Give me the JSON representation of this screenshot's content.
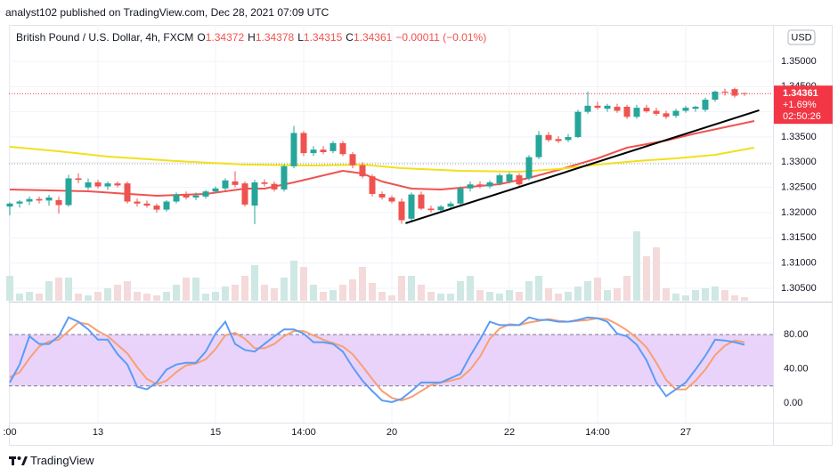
{
  "header": {
    "text": "analyst102 published on TradingView.com, Dec 28, 2021 07:09 UTC"
  },
  "footer": {
    "brand": "TradingView"
  },
  "chart_data": {
    "type": "candlestick",
    "title": "British Pound / U.S. Dollar, 4h, FXCM",
    "ohlc_labels": [
      "O",
      "H",
      "L",
      "C"
    ],
    "change": "−0.00011 (−0.01%)",
    "currency": "USD",
    "change_pct": "+1.69%",
    "countdown": "02:50:26",
    "up_color": "#26a69a",
    "down_color": "#ef5350",
    "volume_up_color": "#cfe8e4",
    "volume_down_color": "#f5dadb",
    "price_line_color": "#f23645",
    "reference_line": 1.3297,
    "grid": true,
    "ylim": [
      1.30253,
      1.35688
    ],
    "yticks": [
      {
        "value": 1.305,
        "label": "1.30500"
      },
      {
        "value": 1.31,
        "label": "1.31000"
      },
      {
        "value": 1.315,
        "label": "1.31500"
      },
      {
        "value": 1.32,
        "label": "1.32000"
      },
      {
        "value": 1.325,
        "label": "1.32500"
      },
      {
        "value": 1.33,
        "label": "1.33000"
      },
      {
        "value": 1.335,
        "label": "1.33500"
      },
      {
        "value": 1.34,
        "label": "1.34000"
      },
      {
        "value": 1.345,
        "label": "1.34500"
      },
      {
        "value": 1.35,
        "label": "1.35000"
      }
    ],
    "categories": [
      ":00",
      null,
      null,
      null,
      null,
      null,
      null,
      null,
      null,
      "13",
      null,
      null,
      null,
      null,
      null,
      null,
      null,
      null,
      null,
      null,
      null,
      "15",
      null,
      null,
      null,
      null,
      null,
      null,
      null,
      null,
      "14:00",
      null,
      null,
      null,
      null,
      null,
      null,
      null,
      null,
      "20",
      null,
      null,
      null,
      null,
      null,
      null,
      null,
      null,
      null,
      null,
      null,
      "22",
      null,
      null,
      null,
      null,
      null,
      null,
      null,
      null,
      "14:00",
      null,
      null,
      null,
      null,
      null,
      null,
      null,
      null,
      "27",
      null,
      null,
      null,
      null,
      null,
      null
    ],
    "open": [
      1.3212,
      1.3218,
      1.3222,
      1.3227,
      1.3224,
      1.3225,
      1.3215,
      1.3268,
      1.325,
      1.326,
      1.3252,
      1.3258,
      1.3258,
      1.3222,
      1.3218,
      1.3214,
      1.3206,
      1.3222,
      1.3236,
      1.323,
      1.3232,
      1.3242,
      1.3248,
      1.3262,
      1.3258,
      1.3214,
      1.326,
      1.3257,
      1.3246,
      1.3292,
      1.3358,
      1.3318,
      1.3325,
      1.3322,
      1.3338,
      1.3316,
      1.3294,
      1.3272,
      1.3237,
      1.323,
      1.3222,
      1.3188,
      1.3236,
      1.3208,
      1.3205,
      1.3212,
      1.3218,
      1.3248,
      1.3256,
      1.3252,
      1.3258,
      1.3262,
      1.3274,
      1.3268,
      1.331,
      1.3354,
      1.3346,
      1.3344,
      1.335,
      1.34,
      1.3412,
      1.3406,
      1.341,
      1.341,
      1.339,
      1.3408,
      1.3402,
      1.3397,
      1.3392,
      1.3402,
      1.3406,
      1.3404,
      1.3424,
      1.344,
      1.3445,
      1.34372
    ],
    "high": [
      1.322,
      1.3225,
      1.3232,
      1.3232,
      1.3235,
      1.3232,
      1.3275,
      1.3278,
      1.3268,
      1.3265,
      1.3262,
      1.3262,
      1.3262,
      1.3228,
      1.3224,
      1.3218,
      1.3225,
      1.324,
      1.3242,
      1.324,
      1.3245,
      1.3252,
      1.3268,
      1.3282,
      1.3262,
      1.3265,
      1.3266,
      1.3262,
      1.3295,
      1.3372,
      1.3362,
      1.3332,
      1.3332,
      1.3342,
      1.3342,
      1.332,
      1.33,
      1.3276,
      1.3242,
      1.3234,
      1.3228,
      1.324,
      1.3242,
      1.3214,
      1.3215,
      1.3222,
      1.3252,
      1.3262,
      1.3262,
      1.3264,
      1.3278,
      1.328,
      1.3278,
      1.3314,
      1.3362,
      1.336,
      1.3352,
      1.3356,
      1.3404,
      1.344,
      1.342,
      1.3416,
      1.3416,
      1.3414,
      1.3414,
      1.3414,
      1.3408,
      1.3402,
      1.3406,
      1.3412,
      1.3412,
      1.3428,
      1.3442,
      1.3446,
      1.3448,
      1.34378
    ],
    "low": [
      1.3195,
      1.321,
      1.3215,
      1.3218,
      1.3214,
      1.3198,
      1.3212,
      1.3258,
      1.3245,
      1.3248,
      1.3245,
      1.325,
      1.3218,
      1.3212,
      1.321,
      1.32,
      1.3202,
      1.3218,
      1.3226,
      1.3225,
      1.3228,
      1.3238,
      1.3244,
      1.325,
      1.3212,
      1.3177,
      1.3252,
      1.3242,
      1.3242,
      1.3288,
      1.3312,
      1.3312,
      1.3316,
      1.3318,
      1.3312,
      1.3288,
      1.3268,
      1.3232,
      1.3226,
      1.3218,
      1.3178,
      1.3184,
      1.3205,
      1.32,
      1.32,
      1.3208,
      1.3214,
      1.3242,
      1.3248,
      1.3248,
      1.3254,
      1.3258,
      1.3252,
      1.3264,
      1.3306,
      1.334,
      1.3338,
      1.334,
      1.3348,
      1.3396,
      1.3404,
      1.34,
      1.3398,
      1.3386,
      1.3386,
      1.3398,
      1.3392,
      1.3386,
      1.3388,
      1.3398,
      1.34,
      1.34,
      1.342,
      1.3432,
      1.3428,
      1.34315
    ],
    "close": [
      1.3218,
      1.3222,
      1.3227,
      1.3224,
      1.323,
      1.3215,
      1.3268,
      1.3265,
      1.326,
      1.3252,
      1.3258,
      1.3254,
      1.3222,
      1.3218,
      1.3214,
      1.3206,
      1.3222,
      1.3236,
      1.323,
      1.3234,
      1.3242,
      1.3248,
      1.3264,
      1.3255,
      1.3216,
      1.326,
      1.3257,
      1.3246,
      1.3292,
      1.3358,
      1.3318,
      1.3325,
      1.332,
      1.3338,
      1.3316,
      1.3294,
      1.3272,
      1.3237,
      1.323,
      1.3222,
      1.3185,
      1.3236,
      1.3208,
      1.3205,
      1.3212,
      1.3218,
      1.3248,
      1.3256,
      1.3252,
      1.326,
      1.3274,
      1.3276,
      1.3256,
      1.331,
      1.3354,
      1.3344,
      1.3342,
      1.335,
      1.34,
      1.3412,
      1.3408,
      1.3412,
      1.3402,
      1.339,
      1.3408,
      1.3401,
      1.3396,
      1.339,
      1.3402,
      1.3408,
      1.341,
      1.3424,
      1.344,
      1.3438,
      1.3432,
      1.34361
    ],
    "volume": [
      28,
      8,
      10,
      8,
      22,
      26,
      26,
      8,
      6,
      10,
      14,
      18,
      22,
      10,
      8,
      6,
      10,
      18,
      26,
      26,
      8,
      10,
      16,
      18,
      28,
      40,
      18,
      14,
      26,
      45,
      38,
      18,
      10,
      12,
      18,
      24,
      38,
      20,
      10,
      6,
      28,
      28,
      18,
      10,
      8,
      8,
      22,
      28,
      12,
      10,
      8,
      12,
      10,
      22,
      28,
      14,
      8,
      10,
      16,
      22,
      26,
      12,
      14,
      28,
      78,
      50,
      60,
      14,
      8,
      6,
      12,
      14,
      16,
      12,
      6,
      4
    ],
    "series": [
      {
        "color": "#f05350",
        "x": [
          0,
          8,
          15,
          20,
          24,
          26,
          29,
          34,
          36,
          38,
          41,
          44,
          47,
          50,
          53,
          56,
          60,
          63,
          67,
          70,
          73,
          76
        ],
        "values": [
          1.32459,
          1.32423,
          1.32335,
          1.3237,
          1.32476,
          1.32476,
          1.326,
          1.32829,
          1.32776,
          1.32617,
          1.32476,
          1.32459,
          1.32511,
          1.32564,
          1.32688,
          1.32847,
          1.33076,
          1.33288,
          1.33429,
          1.3357,
          1.33694,
          1.33818
        ]
      },
      {
        "color": "#f2e01c",
        "x": [
          0,
          5,
          10,
          17,
          24,
          31,
          36,
          40,
          46,
          52,
          56,
          60,
          64,
          68,
          72,
          76
        ],
        "values": [
          1.33306,
          1.33217,
          1.33111,
          1.33023,
          1.32953,
          1.32935,
          1.32953,
          1.32882,
          1.32829,
          1.32812,
          1.32864,
          1.32953,
          1.33023,
          1.33076,
          1.33147,
          1.33288
        ]
      }
    ],
    "trendline": {
      "color": "#000000",
      "x": [
        40.4,
        76.5
      ],
      "values": [
        1.3179,
        1.3403
      ]
    },
    "stochastic": {
      "ylim": [
        -22.9,
        117.4
      ],
      "yticks": [
        {
          "value": 0,
          "label": "0.00"
        },
        {
          "value": 40,
          "label": "40.00"
        },
        {
          "value": 80,
          "label": "80.00"
        }
      ],
      "band": [
        20,
        80
      ],
      "band_color": "#ead3fa",
      "k": {
        "color": "#5b9cf6",
        "values": [
          24,
          45,
          78,
          69,
          69,
          78,
          100,
          95,
          86,
          74,
          74,
          57,
          45,
          19,
          16,
          24,
          39,
          45,
          47,
          47,
          60,
          81,
          95,
          69,
          62,
          60,
          69,
          78,
          86,
          86,
          81,
          71,
          71,
          69,
          60,
          42,
          26,
          14,
          3,
          1,
          5,
          14,
          24,
          24,
          24,
          29,
          34,
          55,
          74,
          95,
          91,
          91,
          91,
          100,
          97,
          97,
          95,
          95,
          97,
          100,
          99,
          95,
          81,
          78,
          68,
          50,
          24,
          8,
          16,
          24,
          39,
          55,
          74,
          73,
          71,
          68
        ]
      },
      "d": {
        "color": "#f7a072",
        "values": [
          30,
          36,
          52,
          66,
          72,
          74,
          84,
          94,
          92,
          84,
          78,
          68,
          58,
          42,
          28,
          22,
          26,
          36,
          44,
          46,
          51,
          63,
          79,
          82,
          75,
          64,
          64,
          69,
          78,
          84,
          84,
          79,
          74,
          70,
          66,
          57,
          43,
          28,
          14,
          6,
          3,
          7,
          14,
          21,
          24,
          26,
          29,
          39,
          54,
          75,
          87,
          92,
          91,
          94,
          96,
          98,
          96,
          95,
          96,
          97,
          99,
          98,
          92,
          85,
          76,
          65,
          47,
          27,
          16,
          16,
          26,
          39,
          56,
          67,
          73,
          71
        ]
      }
    }
  }
}
